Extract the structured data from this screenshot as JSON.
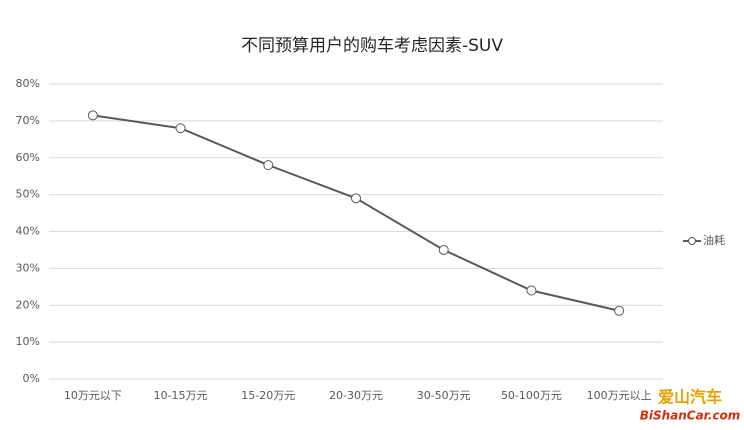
{
  "chart_data": {
    "type": "line",
    "title": "不同预算用户的购车考虑因素-SUV",
    "categories": [
      "10万元以下",
      "10-15万元",
      "15-20万元",
      "20-30万元",
      "30-50万元",
      "50-100万元",
      "100万元以上"
    ],
    "series": [
      {
        "name": "油耗",
        "color": "#595959",
        "values": [
          71.5,
          68,
          58,
          49,
          35,
          24,
          18.5
        ]
      }
    ],
    "ylim": [
      0,
      80
    ],
    "yticks": [
      {
        "value": 0,
        "label": "0%"
      },
      {
        "value": 10,
        "label": "10%"
      },
      {
        "value": 20,
        "label": "20%"
      },
      {
        "value": 30,
        "label": "30%"
      },
      {
        "value": 40,
        "label": "40%"
      },
      {
        "value": 50,
        "label": "50%"
      },
      {
        "value": 60,
        "label": "60%"
      },
      {
        "value": 70,
        "label": "70%"
      },
      {
        "value": 80,
        "label": "80%"
      }
    ],
    "grid": true,
    "legend": "right",
    "watermark": [
      "爱山汽车",
      "BiShanCar.com"
    ]
  }
}
